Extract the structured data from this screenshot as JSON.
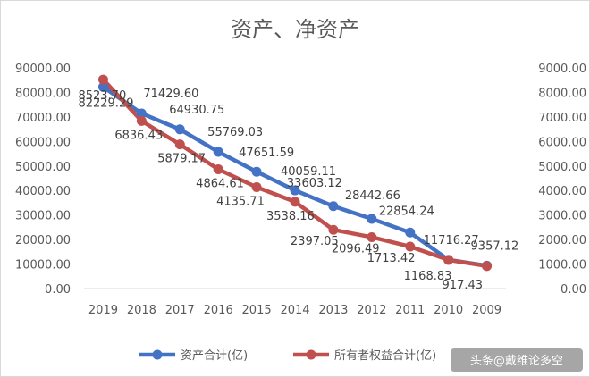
{
  "chart_data": {
    "type": "line",
    "title": "资产、净资产",
    "categories": [
      "2019",
      "2018",
      "2017",
      "2016",
      "2015",
      "2014",
      "2013",
      "2012",
      "2011",
      "2010",
      "2009"
    ],
    "series": [
      {
        "name": "资产合计(亿)",
        "axis": "left",
        "color": "#4472c4",
        "values": [
          82229.29,
          71429.6,
          64930.75,
          55769.03,
          47651.59,
          40059.11,
          33603.12,
          28442.66,
          22854.24,
          11716.27,
          9357.12
        ],
        "labels": [
          "82229.29",
          "71429.60",
          "64930.75",
          "55769.03",
          "47651.59",
          "40059.11",
          "33603.12",
          "28442.66",
          "22854.24",
          "11716.27",
          "9357.12"
        ]
      },
      {
        "name": "所有者权益合计(亿)",
        "axis": "right",
        "color": "#c0504d",
        "values": [
          8523.7,
          6836.43,
          5879.17,
          4864.61,
          4135.71,
          3538.16,
          2397.05,
          2096.49,
          1713.42,
          1168.83,
          917.43
        ],
        "labels": [
          "8523.70",
          "6836.43",
          "5879.17",
          "4864.61",
          "4135.71",
          "3538.16",
          "2397.05",
          "2096.49",
          "1713.42",
          "1168.83",
          "917.43"
        ]
      }
    ],
    "y_left": {
      "range": [
        0,
        90000
      ],
      "ticks": [
        "0.00",
        "10000.00",
        "20000.00",
        "30000.00",
        "40000.00",
        "50000.00",
        "60000.00",
        "70000.00",
        "80000.00",
        "90000.00"
      ]
    },
    "y_right": {
      "range": [
        0,
        9000
      ],
      "ticks": [
        "0.00",
        "1000.00",
        "2000.00",
        "3000.00",
        "4000.00",
        "5000.00",
        "6000.00",
        "7000.00",
        "8000.00",
        "9000.00"
      ]
    },
    "grid": false,
    "legend_position": "bottom"
  },
  "watermark": "头条@戴维论多空"
}
